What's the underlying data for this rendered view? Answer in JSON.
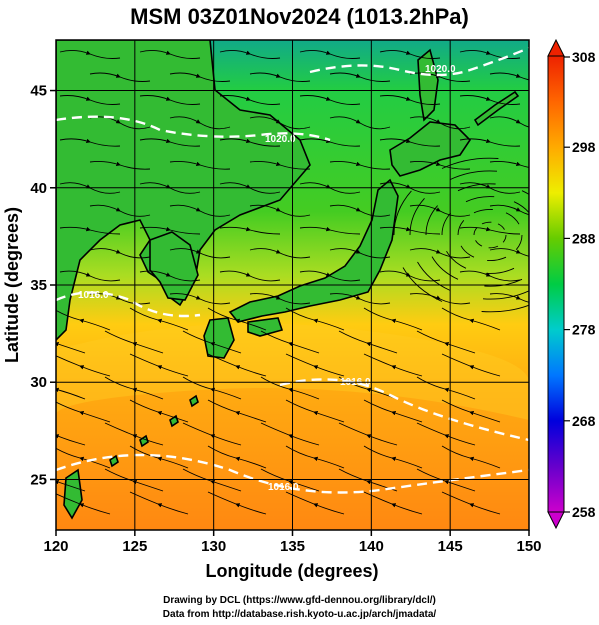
{
  "title": "MSM 03Z01Nov2024 (1013.2hPa)",
  "chart_data": {
    "type": "heatmap",
    "title": "MSM 03Z01Nov2024 (1013.2hPa)",
    "xlabel": "Longitude (degrees)",
    "ylabel": "Latitude  (degrees)",
    "xlim": [
      120,
      150
    ],
    "ylim": [
      22.4,
      47.6
    ],
    "x_ticks": [
      "120",
      "125",
      "130",
      "135",
      "140",
      "145",
      "150"
    ],
    "y_ticks": [
      "25",
      "30",
      "35",
      "40",
      "45"
    ],
    "grid": true,
    "colorbar": {
      "min": 258,
      "max": 308,
      "tick_labels": [
        "308",
        "298",
        "288",
        "278",
        "268",
        "258"
      ],
      "colors": [
        "#cc00cc",
        "#0000cc",
        "#0077ff",
        "#00cccc",
        "#00cc33",
        "#99dd00",
        "#eeee00",
        "#ffaa00",
        "#ff6600",
        "#ee2200"
      ]
    },
    "contours": [
      {
        "label": "1020.0"
      },
      {
        "label": "1020.0"
      },
      {
        "label": "1016.0"
      },
      {
        "label": "1016.0"
      },
      {
        "label": "1016.0"
      }
    ],
    "vector_field": "streamlines"
  },
  "credits": {
    "line1": "Drawing by DCL (https://www.gfd-dennou.org/library/dcl/)",
    "line2": "Data from http://database.rish.kyoto-u.ac.jp/arch/jmadata/"
  },
  "colors": {
    "sea_cool": "#33cc33",
    "sea_warm": "#ff9900",
    "contour": "#ffffff",
    "coast": "#000000"
  }
}
